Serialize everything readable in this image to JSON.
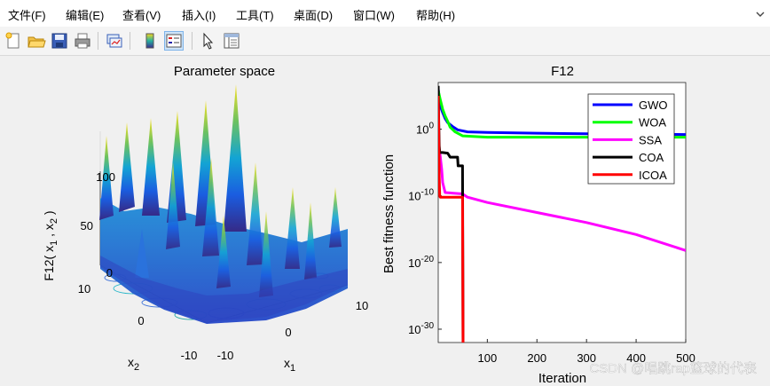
{
  "menubar": {
    "items": [
      {
        "label": "文件(F)"
      },
      {
        "label": "编辑(E)"
      },
      {
        "label": "查看(V)"
      },
      {
        "label": "插入(I)"
      },
      {
        "label": "工具(T)"
      },
      {
        "label": "桌面(D)"
      },
      {
        "label": "窗口(W)"
      },
      {
        "label": "帮助(H)"
      }
    ],
    "overflow_icon": "pin-arrow-icon"
  },
  "toolbar": {
    "buttons": [
      {
        "icon": "new-figure-icon"
      },
      {
        "icon": "open-file-icon"
      },
      {
        "icon": "save-icon"
      },
      {
        "icon": "print-icon"
      },
      {
        "icon": "link-plot-icon"
      },
      {
        "icon": "insert-colorbar-icon"
      },
      {
        "icon": "insert-legend-icon"
      },
      {
        "icon": "edit-plot-arrow-icon"
      },
      {
        "icon": "property-inspector-icon"
      }
    ]
  },
  "left_plot": {
    "title": "Parameter space",
    "zlabel": "F12( x , x )",
    "zlabel_sub1": "1",
    "zlabel_sub2": "2",
    "z_ticks": [
      "0",
      "50",
      "100"
    ],
    "x2_ticks": [
      "10",
      "0",
      "-10"
    ],
    "x1_ticks": [
      "-10",
      "0",
      "10"
    ],
    "x1_label": "x",
    "x1_label_sub": "1",
    "x2_label": "x",
    "x2_label_sub": "2"
  },
  "chart_data": {
    "type": "line",
    "title": "F12",
    "xlabel": "Iteration",
    "ylabel": "Best fitness function",
    "xlim": [
      1,
      500
    ],
    "ylim_exponent": [
      -32,
      7
    ],
    "yscale": "log",
    "x_ticks": [
      "100",
      "200",
      "300",
      "400",
      "500"
    ],
    "y_ticks": [
      {
        "base": "10",
        "exp": "0",
        "value": 0
      },
      {
        "base": "10",
        "exp": "-10",
        "value": -10
      },
      {
        "base": "10",
        "exp": "-20",
        "value": -20
      },
      {
        "base": "10",
        "exp": "-30",
        "value": -30
      }
    ],
    "legend_position": "top-right",
    "series": [
      {
        "name": "GWO",
        "color": "#0000ff",
        "x": [
          1,
          5,
          10,
          15,
          20,
          30,
          40,
          60,
          100,
          200,
          300,
          400,
          500
        ],
        "log10_y": [
          6,
          3.5,
          2.5,
          1.6,
          1.0,
          0.4,
          -0.1,
          -0.4,
          -0.5,
          -0.6,
          -0.7,
          -0.75,
          -0.8
        ]
      },
      {
        "name": "WOA",
        "color": "#00ff00",
        "x": [
          1,
          5,
          10,
          15,
          20,
          25,
          35,
          50,
          100,
          200,
          300,
          400,
          500
        ],
        "log10_y": [
          5.8,
          4.5,
          3.0,
          2.0,
          1.2,
          0.3,
          -0.4,
          -1.0,
          -1.2,
          -1.2,
          -1.2,
          -1.2,
          -1.2
        ]
      },
      {
        "name": "SSA",
        "color": "#ff00ff",
        "x": [
          1,
          3,
          5,
          8,
          10,
          15,
          50,
          60,
          100,
          200,
          300,
          400,
          500
        ],
        "log10_y": [
          -2,
          -3,
          -4,
          -6,
          -8,
          -9.5,
          -9.7,
          -10.2,
          -11.0,
          -12.5,
          -14.0,
          -15.8,
          -18.2
        ]
      },
      {
        "name": "COA",
        "color": "#000000",
        "x": [
          1,
          2,
          3,
          4,
          5,
          10,
          20,
          25,
          40,
          41,
          50,
          51,
          55,
          500
        ],
        "log10_y": [
          6.5,
          1.0,
          -2.5,
          -3.5,
          -3.5,
          -3.5,
          -3.6,
          -4.2,
          -4.2,
          -5.5,
          -5.5,
          -33,
          -33,
          -33
        ]
      },
      {
        "name": "ICOA",
        "color": "#ff0000",
        "x": [
          1,
          2,
          3,
          4,
          5,
          10,
          40,
          41,
          50,
          51,
          55,
          500
        ],
        "log10_y": [
          5.0,
          0.0,
          -7.0,
          -10.0,
          -10.2,
          -10.2,
          -10.2,
          -10.2,
          -10.2,
          -33,
          -33,
          -33
        ]
      }
    ]
  },
  "watermark": "CSDN @唱跳rap篮球的代表"
}
